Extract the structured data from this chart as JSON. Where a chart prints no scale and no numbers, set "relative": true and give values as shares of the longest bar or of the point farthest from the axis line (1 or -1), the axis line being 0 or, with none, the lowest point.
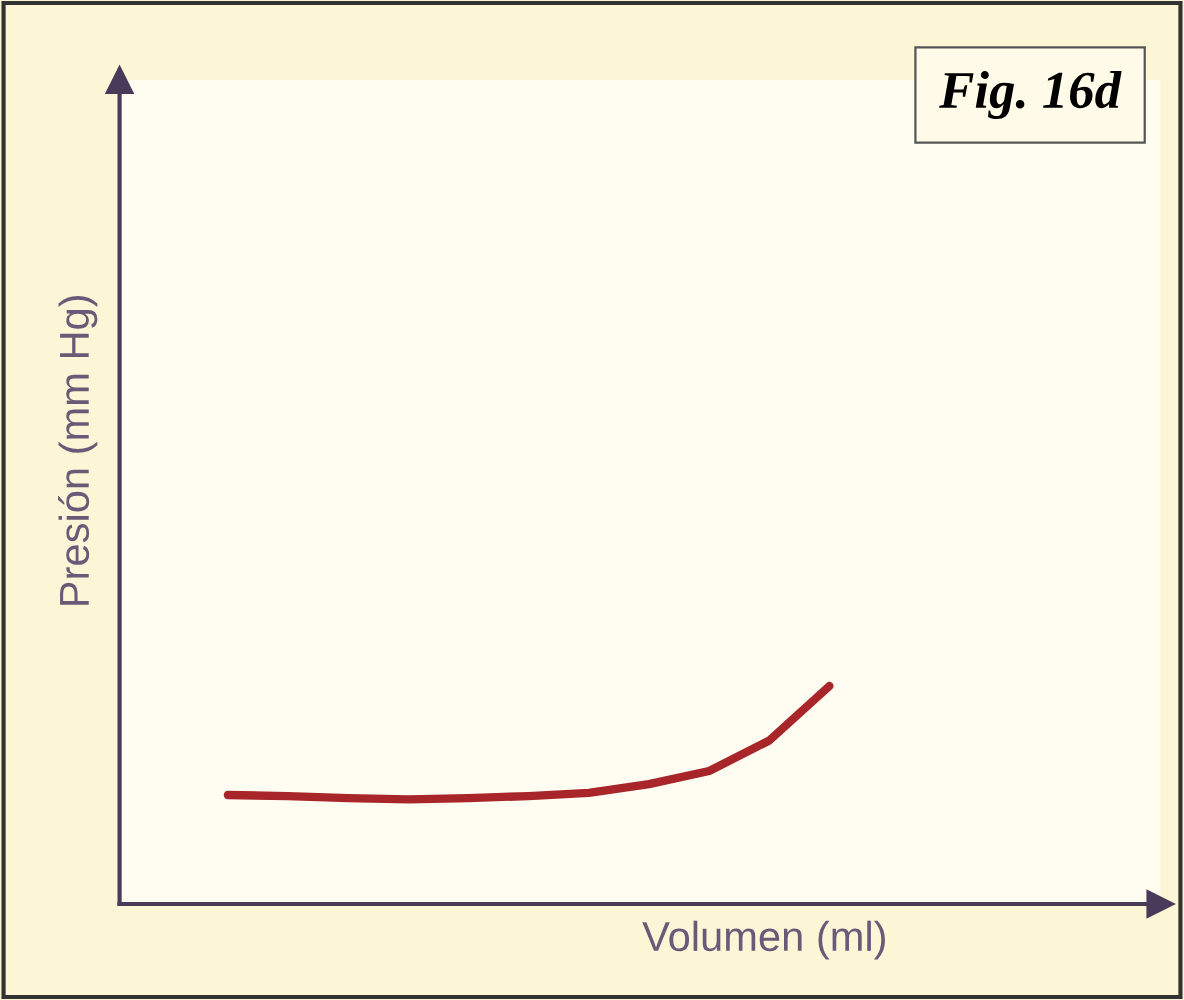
{
  "chart_data": {
    "type": "line",
    "title": "Fig. 16d",
    "xlabel": "Volumen (ml)",
    "ylabel": "Presión (mm Hg)",
    "relative": true,
    "categories": [
      null,
      null,
      null,
      null,
      null,
      null,
      null,
      null,
      null,
      null,
      null
    ],
    "series": [
      {
        "color": "#a8262a",
        "values": [
          0.5,
          0.495,
          0.486,
          0.48,
          0.486,
          0.495,
          0.51,
          0.55,
          0.61,
          0.75,
          1
        ]
      }
    ],
    "marker": "none",
    "line_style": "solid"
  }
}
